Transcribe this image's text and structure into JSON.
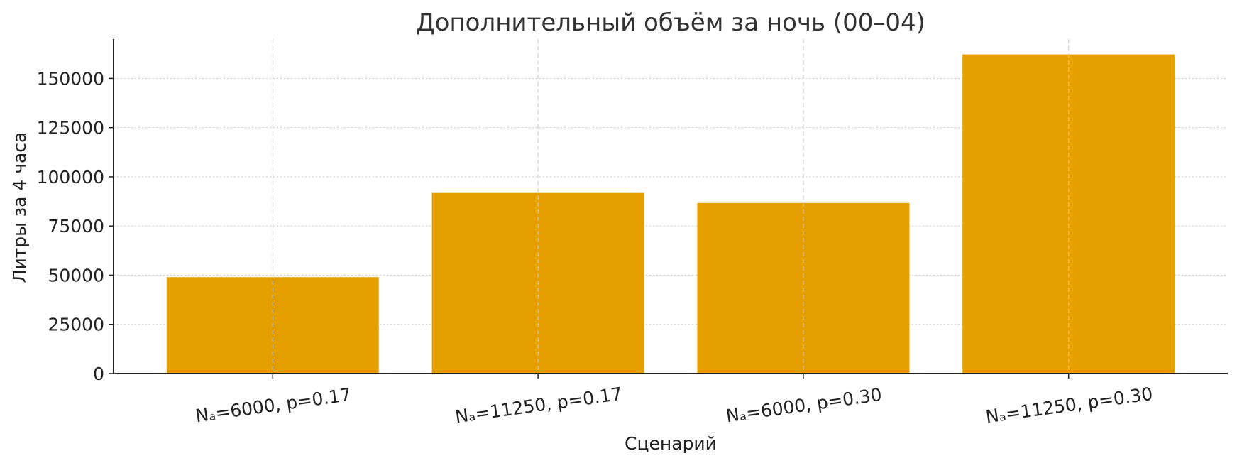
{
  "chart_data": {
    "type": "bar",
    "title": "Дополнительный объём за ночь (00–04)",
    "xlabel": "Сценарий",
    "ylabel": "Литры за 4 часа",
    "categories": [
      "Nₐ=6000, p=0.17",
      "Nₐ=11250, p=0.17",
      "Nₐ=6000, p=0.30",
      "Nₐ=11250, p=0.30"
    ],
    "values": [
      49000,
      91800,
      86700,
      162200
    ],
    "ylim": [
      0,
      170000
    ],
    "yticks": [
      0,
      25000,
      50000,
      75000,
      100000,
      125000,
      150000
    ],
    "ytick_labels": [
      "0",
      "25000",
      "50000",
      "75000",
      "100000",
      "125000",
      "150000"
    ],
    "bar_color": "#E5A000",
    "grid": true,
    "legend": "none"
  }
}
